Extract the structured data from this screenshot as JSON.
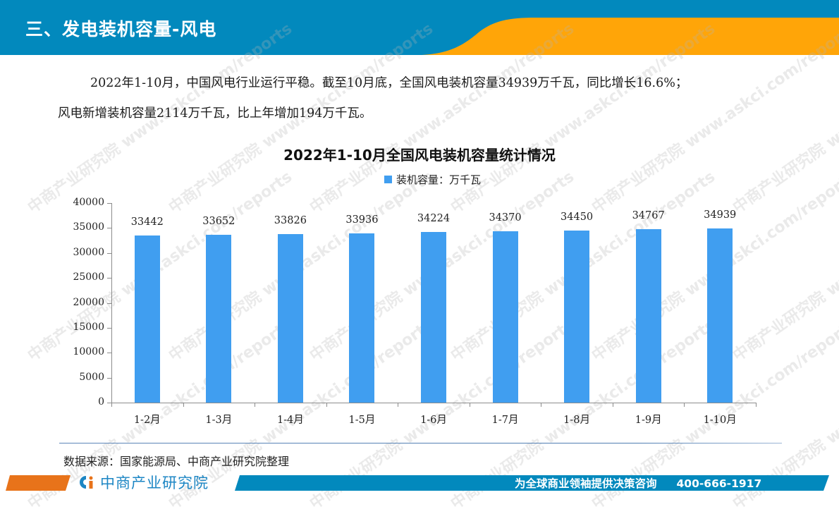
{
  "header": {
    "title": "三、发电装机容量-风电",
    "colors": {
      "blue": "#0289bd",
      "orange": "#ffa508"
    }
  },
  "paragraphs": [
    "2022年1-10月，中国风电行业运行平稳。截至10月底，全国风电装机容量34939万千瓦，同比增长16.6%；",
    "风电新增装机容量2114万千瓦，比上年增加194万千瓦。"
  ],
  "chart_data": {
    "type": "bar",
    "title": "2022年1-10月全国风电装机容量统计情况",
    "legend": [
      "装机容量：万千瓦"
    ],
    "legend_position": "top",
    "categories": [
      "1-2月",
      "1-3月",
      "1-4月",
      "1-5月",
      "1-6月",
      "1-7月",
      "1-8月",
      "1-9月",
      "1-10月"
    ],
    "series": [
      {
        "name": "装机容量：万千瓦",
        "values": [
          33442,
          33652,
          33826,
          33936,
          34224,
          34370,
          34450,
          34767,
          34939
        ],
        "color": "#409ef0"
      }
    ],
    "value_labels": [
      "33442",
      "33652",
      "33826",
      "33936",
      "34224",
      "34370",
      "34450",
      "34767",
      "34939"
    ],
    "xlabel": "",
    "ylabel": "",
    "ylim": [
      0,
      40000
    ],
    "y_ticks": [
      "40000",
      "35000",
      "30000",
      "25000",
      "20000",
      "15000",
      "10000",
      "5000",
      "0"
    ],
    "grid": false
  },
  "source": "数据来源：国家能源局、中商产业研究院整理",
  "footer": {
    "logo_text": "中商产业研究院",
    "slogan": "为全球商业领袖提供决策咨询",
    "phone": "400-666-1917"
  },
  "watermark": "中商产业研究院 www.askci.com/reports"
}
